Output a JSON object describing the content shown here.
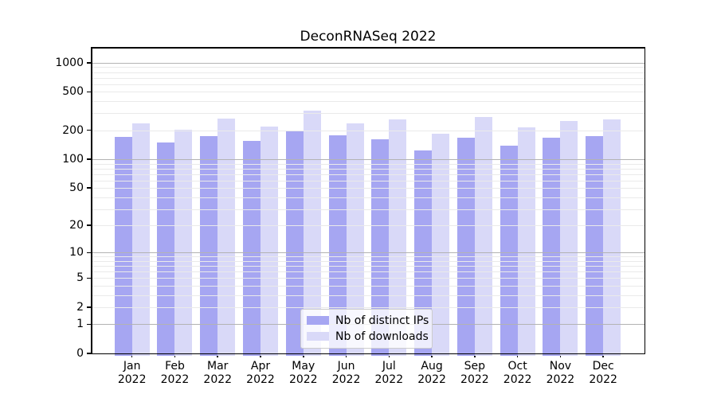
{
  "chart_data": {
    "type": "bar",
    "title": "DeconRNASeq 2022",
    "categories": [
      "Jan",
      "Feb",
      "Mar",
      "Apr",
      "May",
      "Jun",
      "Jul",
      "Aug",
      "Sep",
      "Oct",
      "Nov",
      "Dec"
    ],
    "category_year": "2022",
    "series": [
      {
        "name": "Nb of distinct IPs",
        "color": "#a6a6f2",
        "values": [
          170,
          150,
          175,
          154,
          197,
          178,
          160,
          124,
          169,
          138,
          168,
          173
        ]
      },
      {
        "name": "Nb of downloads",
        "color": "#d9d9f8",
        "values": [
          238,
          204,
          266,
          218,
          318,
          236,
          261,
          184,
          275,
          213,
          249,
          261
        ]
      }
    ],
    "xlabel": "",
    "ylabel": "",
    "y_axis": {
      "scale": "log10(1+x)",
      "tick_values": [
        0,
        1,
        2,
        5,
        10,
        20,
        50,
        100,
        200,
        500,
        1000
      ],
      "major_grid_values": [
        1,
        10,
        100,
        1000
      ],
      "minor_grid_values": [
        2,
        3,
        4,
        5,
        6,
        7,
        8,
        9,
        20,
        30,
        40,
        50,
        60,
        70,
        80,
        90,
        200,
        300,
        400,
        500,
        600,
        700,
        800,
        900
      ],
      "ylim": [
        0,
        1455
      ]
    },
    "grid": true,
    "legend_position": "lower center",
    "colors": {
      "major_gridline": "#b3b3b3",
      "minor_gridline": "#eaeaea",
      "axis": "#000000",
      "background": "#ffffff",
      "legend_border": "#cccccc"
    }
  }
}
